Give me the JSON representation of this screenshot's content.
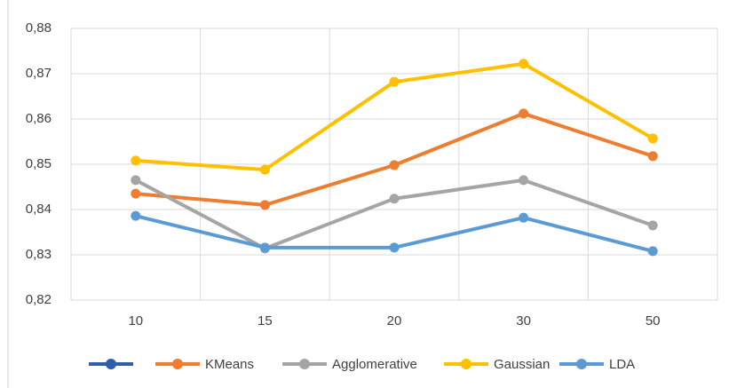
{
  "chart_data": {
    "type": "line",
    "categories": [
      "10",
      "15",
      "20",
      "30",
      "50"
    ],
    "series": [
      {
        "name": "KMeans",
        "color": "#ed7d31",
        "values": [
          0.8435,
          0.841,
          0.8498,
          0.8612,
          0.8518
        ]
      },
      {
        "name": "Agglomerative",
        "color": "#a5a5a5",
        "values": [
          0.8465,
          0.8314,
          0.8424,
          0.8465,
          0.8365
        ]
      },
      {
        "name": "Gaussian",
        "color": "#ffc000",
        "values": [
          0.8508,
          0.8488,
          0.8682,
          0.8722,
          0.8557
        ]
      },
      {
        "name": "LDA",
        "color": "#5b9bd5",
        "values": [
          0.8386,
          0.8316,
          0.8316,
          0.8382,
          0.8308
        ]
      }
    ],
    "ylim": [
      0.82,
      0.88
    ],
    "yticks": [
      {
        "value": 0.82,
        "label": "0,82"
      },
      {
        "value": 0.83,
        "label": "0,83"
      },
      {
        "value": 0.84,
        "label": "0,84"
      },
      {
        "value": 0.85,
        "label": "0,85"
      },
      {
        "value": 0.86,
        "label": "0,86"
      },
      {
        "value": 0.87,
        "label": "0,87"
      },
      {
        "value": 0.88,
        "label": "0,88"
      }
    ],
    "grid": true
  }
}
